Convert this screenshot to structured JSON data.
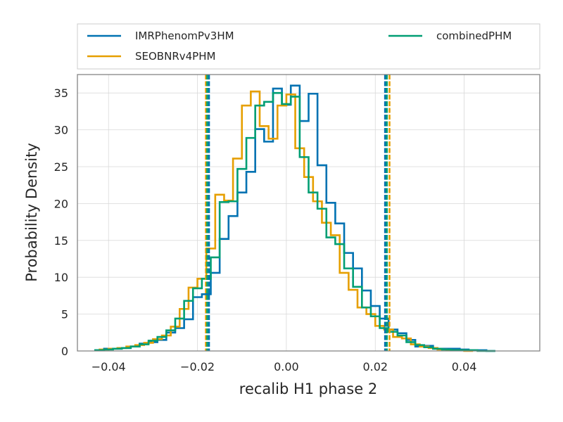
{
  "chart_data": {
    "type": "histogram",
    "xlabel": "recalib H1 phase 2",
    "ylabel": "Probability Density",
    "xlim": [
      -0.047,
      0.057
    ],
    "ylim": [
      0,
      37.5
    ],
    "x_ticks": [
      -0.04,
      -0.02,
      0.0,
      0.02,
      0.04
    ],
    "x_tick_labels": [
      "−0.04",
      "−0.02",
      "0.00",
      "0.02",
      "0.04"
    ],
    "y_ticks": [
      0,
      5,
      10,
      15,
      20,
      25,
      30,
      35
    ],
    "y_tick_labels": [
      "0",
      "5",
      "10",
      "15",
      "20",
      "25",
      "30",
      "35"
    ],
    "grid": true,
    "legend_position": "top (above plot), two columns",
    "series": [
      {
        "name": "IMRPhenomPv3HM",
        "color": "#0072b2",
        "bin_start": -0.043,
        "bin_width": 0.002,
        "densities": [
          0.1,
          0.3,
          0.3,
          0.4,
          0.6,
          1.0,
          1.2,
          1.5,
          2.5,
          3.1,
          4.3,
          7.3,
          7.7,
          10.6,
          15.2,
          18.3,
          21.5,
          24.3,
          30.1,
          28.4,
          35.6,
          33.4,
          36.0,
          31.2,
          34.9,
          25.2,
          20.1,
          17.3,
          13.3,
          11.2,
          8.2,
          6.1,
          4.4,
          2.9,
          2.4,
          1.5,
          0.6,
          0.7,
          0.3,
          0.3,
          0.3,
          0.2,
          0.1,
          0.1,
          0.0
        ],
        "ci": [
          -0.0174,
          0.0222
        ]
      },
      {
        "name": "SEOBNRv4PHM",
        "color": "#e69f00",
        "bin_start": -0.042,
        "bin_width": 0.002,
        "densities": [
          0.2,
          0.3,
          0.4,
          0.6,
          0.8,
          1.1,
          1.6,
          2.1,
          3.3,
          5.7,
          8.6,
          9.8,
          13.9,
          21.2,
          20.4,
          26.1,
          33.3,
          35.2,
          30.5,
          28.8,
          33.3,
          34.8,
          27.5,
          23.6,
          20.3,
          17.4,
          15.7,
          10.6,
          8.3,
          5.9,
          5.0,
          3.4,
          2.9,
          1.9,
          1.7,
          0.9,
          0.6,
          0.4,
          0.2,
          0.1,
          0.1,
          0.0
        ],
        "ci": [
          -0.0181,
          0.0232
        ]
      },
      {
        "name": "combinedPHM",
        "color": "#009e73",
        "bin_start": -0.043,
        "bin_width": 0.002,
        "densities": [
          0.1,
          0.2,
          0.3,
          0.4,
          0.6,
          0.9,
          1.4,
          1.9,
          2.8,
          4.4,
          6.8,
          8.5,
          9.8,
          12.7,
          20.2,
          20.3,
          24.7,
          28.9,
          33.3,
          33.8,
          35.0,
          33.5,
          34.5,
          26.3,
          21.5,
          19.3,
          15.4,
          14.5,
          11.2,
          8.7,
          5.9,
          4.7,
          3.1,
          2.6,
          2.1,
          1.2,
          0.8,
          0.5,
          0.3,
          0.2,
          0.1,
          0.1,
          0.1,
          0.0,
          0.0
        ],
        "ci": [
          -0.0178,
          0.0226
        ]
      }
    ]
  }
}
